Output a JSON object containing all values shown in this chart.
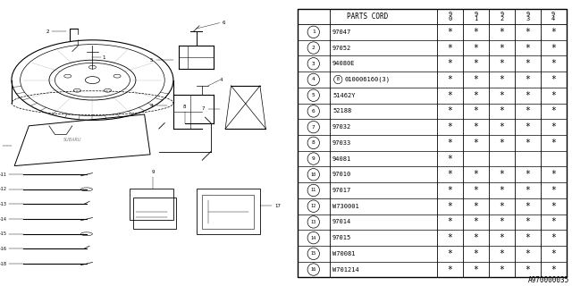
{
  "watermark": "A970000035",
  "rows": [
    {
      "num": "1",
      "part": "97047",
      "stars": [
        1,
        1,
        1,
        1,
        1
      ]
    },
    {
      "num": "2",
      "part": "97052",
      "stars": [
        1,
        1,
        1,
        1,
        1
      ]
    },
    {
      "num": "3",
      "part": "94080E",
      "stars": [
        1,
        1,
        1,
        1,
        1
      ]
    },
    {
      "num": "4",
      "part": "B010006160(3)",
      "stars": [
        1,
        1,
        1,
        1,
        1
      ],
      "b_circle": true
    },
    {
      "num": "5",
      "part": "51462Y",
      "stars": [
        1,
        1,
        1,
        1,
        1
      ]
    },
    {
      "num": "6",
      "part": "52188",
      "stars": [
        1,
        1,
        1,
        1,
        1
      ]
    },
    {
      "num": "7",
      "part": "97032",
      "stars": [
        1,
        1,
        1,
        1,
        1
      ]
    },
    {
      "num": "8",
      "part": "97033",
      "stars": [
        1,
        1,
        1,
        1,
        1
      ]
    },
    {
      "num": "9",
      "part": "94081",
      "stars": [
        1,
        0,
        0,
        0,
        0
      ]
    },
    {
      "num": "10",
      "part": "97010",
      "stars": [
        1,
        1,
        1,
        1,
        1
      ]
    },
    {
      "num": "11",
      "part": "97017",
      "stars": [
        1,
        1,
        1,
        1,
        1
      ]
    },
    {
      "num": "12",
      "part": "W730001",
      "stars": [
        1,
        1,
        1,
        1,
        1
      ]
    },
    {
      "num": "13",
      "part": "97014",
      "stars": [
        1,
        1,
        1,
        1,
        1
      ]
    },
    {
      "num": "14",
      "part": "97015",
      "stars": [
        1,
        1,
        1,
        1,
        1
      ]
    },
    {
      "num": "15",
      "part": "W70081",
      "stars": [
        1,
        1,
        1,
        1,
        1
      ]
    },
    {
      "num": "16",
      "part": "W701214",
      "stars": [
        1,
        1,
        1,
        1,
        1
      ]
    }
  ],
  "bg_color": "#ffffff"
}
